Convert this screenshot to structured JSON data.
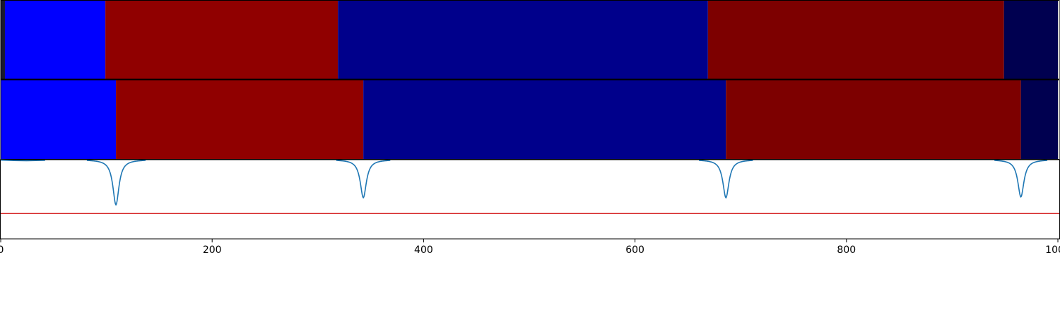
{
  "chart_data": [
    {
      "type": "heatmap",
      "panel": "top-segmentation",
      "segments": [
        {
          "start": 0,
          "end": 4,
          "color": "#1a1a2e"
        },
        {
          "start": 4,
          "end": 99,
          "color": "#0000ff"
        },
        {
          "start": 99,
          "end": 319,
          "color": "#900000"
        },
        {
          "start": 319,
          "end": 669,
          "color": "#00008b"
        },
        {
          "start": 669,
          "end": 949,
          "color": "#7d0000"
        },
        {
          "start": 949,
          "end": 1000,
          "color": "#000050"
        }
      ]
    },
    {
      "type": "heatmap",
      "panel": "bottom-segmentation",
      "segments": [
        {
          "start": 0,
          "end": 109,
          "color": "#0000ff"
        },
        {
          "start": 109,
          "end": 343,
          "color": "#900000"
        },
        {
          "start": 343,
          "end": 686,
          "color": "#00008b"
        },
        {
          "start": 686,
          "end": 965,
          "color": "#7d0000"
        },
        {
          "start": 965,
          "end": 1000,
          "color": "#000050"
        }
      ]
    },
    {
      "type": "line",
      "panel": "boundary-signal",
      "baseline": 0,
      "threshold": -0.68,
      "ylim": [
        -1,
        0
      ],
      "xlim": [
        0,
        1000
      ],
      "dips": [
        {
          "x": 109,
          "depth": 0.57,
          "width": 3.5
        },
        {
          "x": 343,
          "depth": 0.48,
          "width": 3.5
        },
        {
          "x": 686,
          "depth": 0.48,
          "width": 3.5
        },
        {
          "x": 965,
          "depth": 0.47,
          "width": 3.5
        }
      ],
      "early_segment": {
        "from": 0,
        "to": 42,
        "y": -0.012
      },
      "line_color": "#1f77b4",
      "threshold_color": "#d62728",
      "xticks": [
        0,
        200,
        400,
        600,
        800,
        1000
      ],
      "xtick_labels": [
        "0",
        "200",
        "400",
        "600",
        "800",
        "1000"
      ]
    }
  ]
}
